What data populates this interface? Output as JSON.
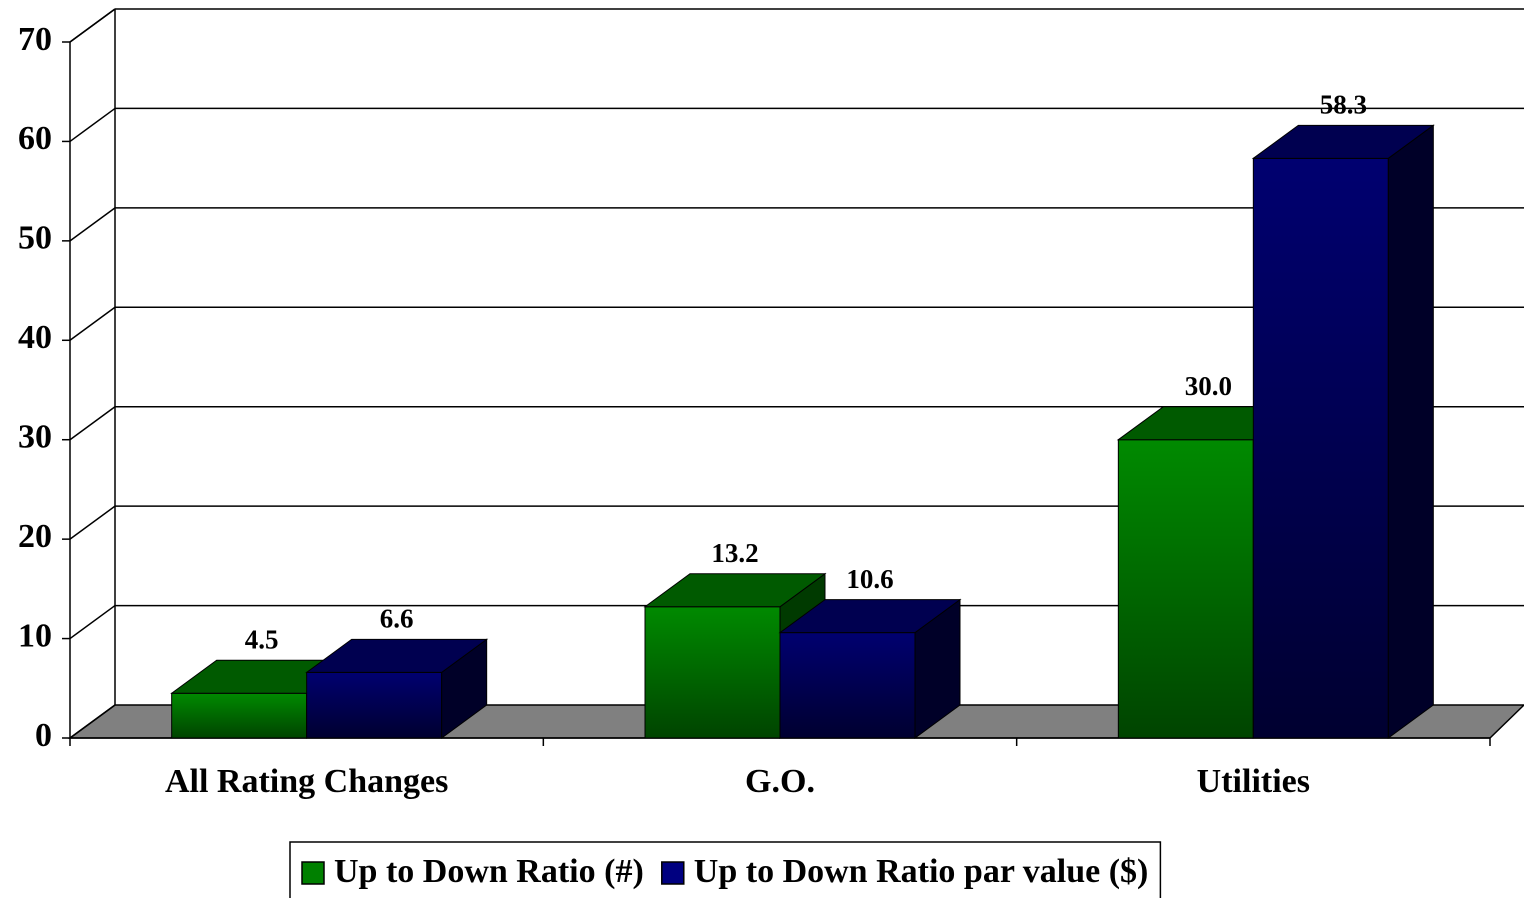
{
  "chart_data": {
    "type": "bar3d",
    "categories": [
      "All Rating Changes",
      "G.O.",
      "Utilities"
    ],
    "series": [
      {
        "name": "Up to Down Ratio (#)",
        "color": "#008000",
        "values": [
          4.5,
          13.2,
          30.0
        ],
        "value_labels": [
          "4.5",
          "13.2",
          "30.0"
        ]
      },
      {
        "name": "Up to Down Ratio par value ($)",
        "color": "#000080",
        "values": [
          6.6,
          10.6,
          58.3
        ],
        "value_labels": [
          "6.6",
          "10.6",
          "58.3"
        ]
      }
    ],
    "ylim": [
      0,
      70
    ],
    "yticks": [
      0,
      10,
      20,
      30,
      40,
      50,
      60,
      70
    ],
    "grid": true,
    "legend": "bottom"
  }
}
